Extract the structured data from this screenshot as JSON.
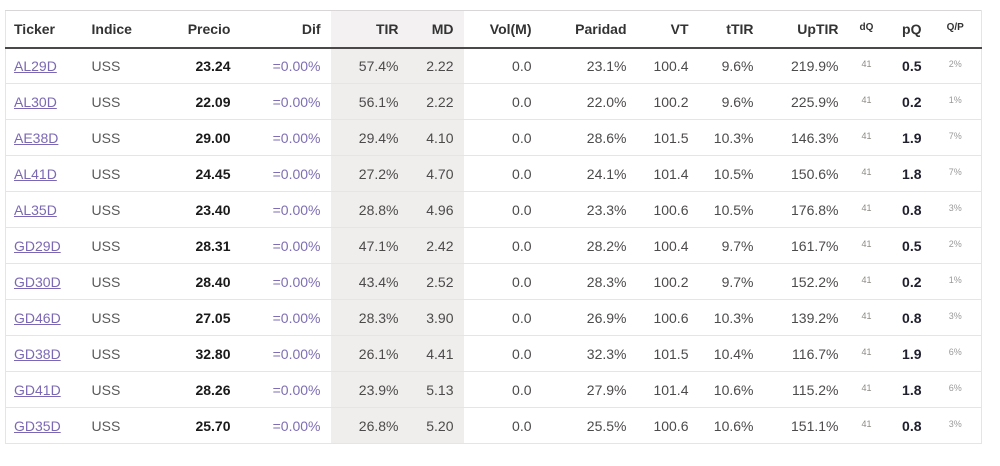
{
  "colors": {
    "link": "#7b68b4",
    "dif_text": "#7e6eb4",
    "shaded_column_bg": "#f0eded",
    "shaded_header_bg": "#f3f1f1",
    "header_text": "#333333",
    "header_border": "#4a4848",
    "body_text": "#4c4a4a"
  },
  "table": {
    "columns": [
      {
        "key": "ticker",
        "label": "Ticker"
      },
      {
        "key": "indice",
        "label": "Indice"
      },
      {
        "key": "precio",
        "label": "Precio"
      },
      {
        "key": "dif",
        "label": "Dif"
      },
      {
        "key": "tir",
        "label": "TIR"
      },
      {
        "key": "md",
        "label": "MD"
      },
      {
        "key": "vol",
        "label": "Vol(M)"
      },
      {
        "key": "paridad",
        "label": "Paridad"
      },
      {
        "key": "vt",
        "label": "VT"
      },
      {
        "key": "ttir",
        "label": "tTIR"
      },
      {
        "key": "uptir",
        "label": "UpTIR"
      },
      {
        "key": "dq",
        "label": "dQ"
      },
      {
        "key": "pq",
        "label": "pQ"
      },
      {
        "key": "qp",
        "label": "Q/P"
      }
    ],
    "rows": [
      {
        "ticker": "AL29D",
        "indice": "USS",
        "precio": "23.24",
        "dif": "=0.00%",
        "tir": "57.4%",
        "md": "2.22",
        "vol": "0.0",
        "paridad": "23.1%",
        "vt": "100.4",
        "ttir": "9.6%",
        "uptir": "219.9%",
        "dq": "41",
        "pq": "0.5",
        "qp": "2%"
      },
      {
        "ticker": "AL30D",
        "indice": "USS",
        "precio": "22.09",
        "dif": "=0.00%",
        "tir": "56.1%",
        "md": "2.22",
        "vol": "0.0",
        "paridad": "22.0%",
        "vt": "100.2",
        "ttir": "9.6%",
        "uptir": "225.9%",
        "dq": "41",
        "pq": "0.2",
        "qp": "1%"
      },
      {
        "ticker": "AE38D",
        "indice": "USS",
        "precio": "29.00",
        "dif": "=0.00%",
        "tir": "29.4%",
        "md": "4.10",
        "vol": "0.0",
        "paridad": "28.6%",
        "vt": "101.5",
        "ttir": "10.3%",
        "uptir": "146.3%",
        "dq": "41",
        "pq": "1.9",
        "qp": "7%"
      },
      {
        "ticker": "AL41D",
        "indice": "USS",
        "precio": "24.45",
        "dif": "=0.00%",
        "tir": "27.2%",
        "md": "4.70",
        "vol": "0.0",
        "paridad": "24.1%",
        "vt": "101.4",
        "ttir": "10.5%",
        "uptir": "150.6%",
        "dq": "41",
        "pq": "1.8",
        "qp": "7%"
      },
      {
        "ticker": "AL35D",
        "indice": "USS",
        "precio": "23.40",
        "dif": "=0.00%",
        "tir": "28.8%",
        "md": "4.96",
        "vol": "0.0",
        "paridad": "23.3%",
        "vt": "100.6",
        "ttir": "10.5%",
        "uptir": "176.8%",
        "dq": "41",
        "pq": "0.8",
        "qp": "3%"
      },
      {
        "ticker": "GD29D",
        "indice": "USS",
        "precio": "28.31",
        "dif": "=0.00%",
        "tir": "47.1%",
        "md": "2.42",
        "vol": "0.0",
        "paridad": "28.2%",
        "vt": "100.4",
        "ttir": "9.7%",
        "uptir": "161.7%",
        "dq": "41",
        "pq": "0.5",
        "qp": "2%"
      },
      {
        "ticker": "GD30D",
        "indice": "USS",
        "precio": "28.40",
        "dif": "=0.00%",
        "tir": "43.4%",
        "md": "2.52",
        "vol": "0.0",
        "paridad": "28.3%",
        "vt": "100.2",
        "ttir": "9.7%",
        "uptir": "152.2%",
        "dq": "41",
        "pq": "0.2",
        "qp": "1%"
      },
      {
        "ticker": "GD46D",
        "indice": "USS",
        "precio": "27.05",
        "dif": "=0.00%",
        "tir": "28.3%",
        "md": "3.90",
        "vol": "0.0",
        "paridad": "26.9%",
        "vt": "100.6",
        "ttir": "10.3%",
        "uptir": "139.2%",
        "dq": "41",
        "pq": "0.8",
        "qp": "3%"
      },
      {
        "ticker": "GD38D",
        "indice": "USS",
        "precio": "32.80",
        "dif": "=0.00%",
        "tir": "26.1%",
        "md": "4.41",
        "vol": "0.0",
        "paridad": "32.3%",
        "vt": "101.5",
        "ttir": "10.4%",
        "uptir": "116.7%",
        "dq": "41",
        "pq": "1.9",
        "qp": "6%"
      },
      {
        "ticker": "GD41D",
        "indice": "USS",
        "precio": "28.26",
        "dif": "=0.00%",
        "tir": "23.9%",
        "md": "5.13",
        "vol": "0.0",
        "paridad": "27.9%",
        "vt": "101.4",
        "ttir": "10.6%",
        "uptir": "115.2%",
        "dq": "41",
        "pq": "1.8",
        "qp": "6%"
      },
      {
        "ticker": "GD35D",
        "indice": "USS",
        "precio": "25.70",
        "dif": "=0.00%",
        "tir": "26.8%",
        "md": "5.20",
        "vol": "0.0",
        "paridad": "25.5%",
        "vt": "100.6",
        "ttir": "10.6%",
        "uptir": "151.1%",
        "dq": "41",
        "pq": "0.8",
        "qp": "3%"
      }
    ]
  }
}
